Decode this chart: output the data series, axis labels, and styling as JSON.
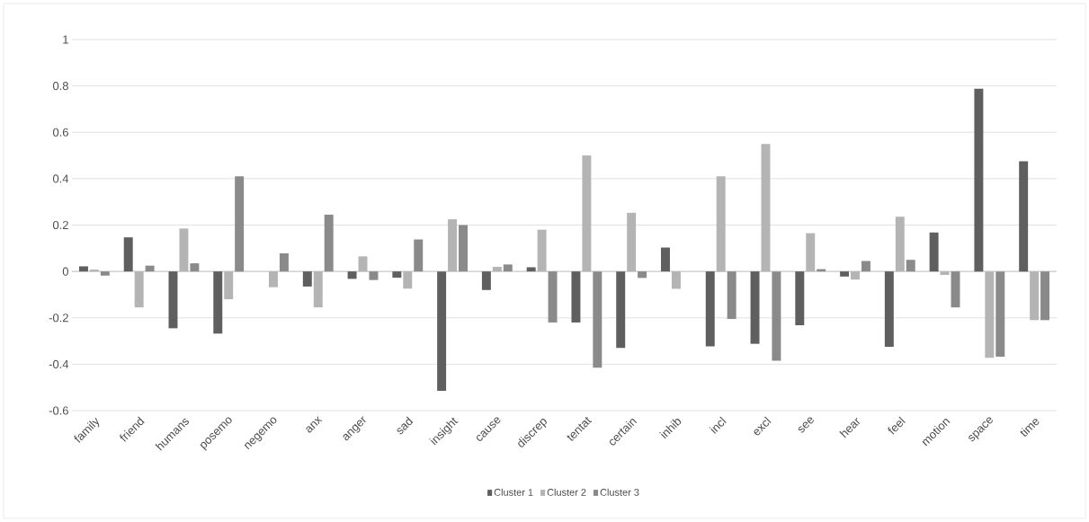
{
  "chart_data": {
    "type": "bar",
    "categories": [
      "family",
      "friend",
      "humans",
      "posemo",
      "negemo",
      "anx",
      "anger",
      "sad",
      "insight",
      "cause",
      "discrep",
      "tentat",
      "certain",
      "inhib",
      "incl",
      "excl",
      "see",
      "hear",
      "feel",
      "motion",
      "space",
      "time"
    ],
    "series": [
      {
        "name": "Cluster 1",
        "color": "#5f5f5f",
        "values": [
          0.022,
          0.147,
          -0.245,
          -0.268,
          0,
          -0.065,
          -0.032,
          -0.027,
          -0.515,
          -0.08,
          0.018,
          -0.22,
          -0.33,
          0.103,
          -0.323,
          -0.312,
          -0.232,
          -0.022,
          -0.325,
          0.168,
          0.788,
          0.475
        ]
      },
      {
        "name": "Cluster 2",
        "color": "#b4b4b4",
        "values": [
          0.008,
          -0.155,
          0.185,
          -0.12,
          -0.068,
          -0.155,
          0.065,
          -0.074,
          0.225,
          0.02,
          0.18,
          0.5,
          0.253,
          -0.075,
          0.41,
          0.55,
          0.165,
          -0.035,
          0.236,
          -0.015,
          -0.372,
          -0.21
        ]
      },
      {
        "name": "Cluster 3",
        "color": "#8a8a8a",
        "values": [
          -0.018,
          0.025,
          0.035,
          0.41,
          0.078,
          0.245,
          -0.037,
          0.138,
          0.2,
          0.03,
          -0.22,
          -0.415,
          -0.028,
          0,
          -0.205,
          -0.385,
          0.01,
          0.045,
          0.05,
          -0.155,
          -0.368,
          -0.21
        ]
      }
    ],
    "ylim": [
      -0.6,
      1
    ],
    "yticks": [
      -0.6,
      -0.4,
      -0.2,
      0,
      0.2,
      0.4,
      0.6,
      0.8,
      1
    ],
    "grid": "y",
    "legend": "bottom"
  }
}
